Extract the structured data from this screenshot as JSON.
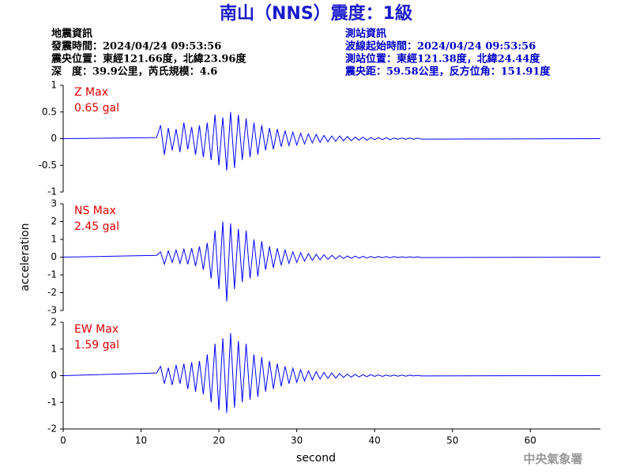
{
  "title": "南山（NNS）震度：1級",
  "event_info": {
    "heading": "地震資訊",
    "lines": [
      "發震時間：2024/04/24 09:53:56",
      "震央位置：東經121.66度，北緯23.96度",
      "深　度：39.9公里，芮氏規模：4.6"
    ]
  },
  "station_info": {
    "heading": "測站資訊",
    "lines": [
      "波線起始時間：2024/04/24 09:53:56",
      "測站位置：東經121.38度，北緯24.44度",
      "震央距：59.58公里，反方位角：151.91度"
    ]
  },
  "footer": "中央氣象署",
  "chart_data": [
    {
      "type": "line",
      "label": "Z Max",
      "max_label": "0.65 gal",
      "color": "#0000ff",
      "xlim": [
        0,
        69
      ],
      "ylim": [
        -1,
        1
      ],
      "yticks": [
        -1,
        -0.5,
        0,
        0.5,
        1
      ],
      "x": [
        0,
        12,
        12.5,
        13,
        13.5,
        14,
        14.5,
        15,
        15.5,
        16,
        16.5,
        17,
        17.5,
        18,
        18.5,
        19,
        19.5,
        20,
        20.5,
        21,
        21.5,
        22,
        22.5,
        23,
        23.5,
        24,
        24.5,
        25,
        25.5,
        26,
        26.5,
        27,
        27.5,
        28,
        28.5,
        29,
        29.5,
        30,
        30.5,
        31,
        31.5,
        32,
        32.5,
        33,
        33.5,
        34,
        34.5,
        35,
        35.5,
        36,
        36.5,
        37,
        37.5,
        38,
        38.5,
        39,
        39.5,
        40,
        40.5,
        41,
        41.5,
        42,
        42.5,
        43,
        43.5,
        44,
        44.5,
        45,
        45.5,
        46,
        69
      ],
      "values": [
        0,
        0.02,
        0.25,
        -0.3,
        0.2,
        -0.22,
        0.18,
        -0.25,
        0.3,
        -0.2,
        0.22,
        -0.3,
        0.25,
        -0.35,
        0.3,
        -0.4,
        0.45,
        -0.5,
        0.4,
        -0.6,
        0.5,
        -0.55,
        0.45,
        -0.4,
        0.38,
        -0.35,
        0.3,
        -0.3,
        0.25,
        -0.22,
        0.2,
        -0.2,
        0.18,
        -0.15,
        0.15,
        -0.13,
        0.12,
        -0.12,
        0.1,
        -0.1,
        0.09,
        -0.08,
        0.08,
        -0.07,
        0.06,
        -0.06,
        0.05,
        -0.05,
        0.05,
        -0.04,
        0.04,
        -0.04,
        0.03,
        -0.03,
        0.03,
        -0.03,
        0.02,
        -0.02,
        0.02,
        -0.02,
        0.02,
        -0.02,
        0.01,
        -0.01,
        0.01,
        -0.01,
        0.01,
        -0.01,
        0.01,
        -0.01,
        0
      ]
    },
    {
      "type": "line",
      "label": "NS Max",
      "max_label": "2.45 gal",
      "color": "#0000ff",
      "ylabel": "acceleration",
      "xlim": [
        0,
        69
      ],
      "ylim": [
        -3,
        3
      ],
      "yticks": [
        -3,
        -2,
        -1,
        0,
        1,
        2,
        3
      ],
      "x": [
        0,
        12,
        12.5,
        13,
        13.5,
        14,
        14.5,
        15,
        15.5,
        16,
        16.5,
        17,
        17.5,
        18,
        18.5,
        19,
        19.5,
        20,
        20.5,
        21,
        21.5,
        22,
        22.5,
        23,
        23.5,
        24,
        24.5,
        25,
        25.5,
        26,
        26.5,
        27,
        27.5,
        28,
        28.5,
        29,
        29.5,
        30,
        30.5,
        31,
        31.5,
        32,
        32.5,
        33,
        33.5,
        34,
        34.5,
        35,
        35.5,
        36,
        36.5,
        37,
        37.5,
        38,
        38.5,
        39,
        39.5,
        40,
        40.5,
        41,
        41.5,
        42,
        42.5,
        43,
        43.5,
        44,
        44.5,
        45,
        45.5,
        46,
        69
      ],
      "values": [
        0,
        0.1,
        0.3,
        -0.4,
        0.35,
        -0.3,
        0.4,
        -0.35,
        0.45,
        -0.4,
        0.5,
        -0.5,
        0.6,
        -0.7,
        0.8,
        -1.2,
        1.5,
        -1.8,
        2.0,
        -2.5,
        1.9,
        -1.8,
        1.6,
        -1.4,
        1.5,
        -1.2,
        1.0,
        -1.1,
        0.9,
        -0.7,
        0.6,
        -0.6,
        0.5,
        -0.45,
        0.4,
        -0.35,
        0.3,
        -0.3,
        0.25,
        -0.22,
        0.2,
        -0.18,
        0.16,
        -0.15,
        0.13,
        -0.12,
        0.1,
        -0.1,
        0.09,
        -0.08,
        0.07,
        -0.07,
        0.06,
        -0.06,
        0.05,
        -0.05,
        0.04,
        -0.04,
        0.04,
        -0.03,
        0.03,
        -0.03,
        0.03,
        -0.02,
        0.02,
        -0.02,
        0.02,
        -0.02,
        0.02,
        -0.02,
        0
      ]
    },
    {
      "type": "line",
      "label": "EW Max",
      "max_label": "1.59 gal",
      "color": "#0000ff",
      "xlabel": "second",
      "xlim": [
        0,
        69
      ],
      "xticks": [
        0,
        10,
        20,
        30,
        40,
        50,
        60
      ],
      "ylim": [
        -2,
        2
      ],
      "yticks": [
        -2,
        -1,
        0,
        1,
        2
      ],
      "x": [
        0,
        12,
        12.5,
        13,
        13.5,
        14,
        14.5,
        15,
        15.5,
        16,
        16.5,
        17,
        17.5,
        18,
        18.5,
        19,
        19.5,
        20,
        20.5,
        21,
        21.5,
        22,
        22.5,
        23,
        23.5,
        24,
        24.5,
        25,
        25.5,
        26,
        26.5,
        27,
        27.5,
        28,
        28.5,
        29,
        29.5,
        30,
        30.5,
        31,
        31.5,
        32,
        32.5,
        33,
        33.5,
        34,
        34.5,
        35,
        35.5,
        36,
        36.5,
        37,
        37.5,
        38,
        38.5,
        39,
        39.5,
        40,
        40.5,
        41,
        41.5,
        42,
        42.5,
        43,
        43.5,
        44,
        44.5,
        45,
        45.5,
        46,
        69
      ],
      "values": [
        0,
        0.1,
        0.35,
        -0.3,
        0.3,
        -0.35,
        0.4,
        -0.3,
        0.45,
        -0.5,
        0.5,
        -0.6,
        0.55,
        -0.7,
        0.8,
        -1.0,
        1.2,
        -1.3,
        1.4,
        -1.4,
        1.6,
        -1.2,
        1.3,
        -1.0,
        1.2,
        -0.9,
        0.8,
        -0.8,
        0.7,
        -0.6,
        0.55,
        -0.5,
        0.45,
        -0.4,
        0.35,
        -0.3,
        0.28,
        -0.25,
        0.22,
        -0.2,
        0.18,
        -0.16,
        0.15,
        -0.13,
        0.12,
        -0.1,
        0.1,
        -0.09,
        0.08,
        -0.07,
        0.06,
        -0.06,
        0.05,
        -0.05,
        0.04,
        -0.04,
        0.04,
        -0.03,
        0.03,
        -0.03,
        0.02,
        -0.02,
        0.02,
        -0.02,
        0.02,
        -0.02,
        0.02,
        -0.01,
        0.01,
        -0.01,
        0
      ]
    }
  ]
}
